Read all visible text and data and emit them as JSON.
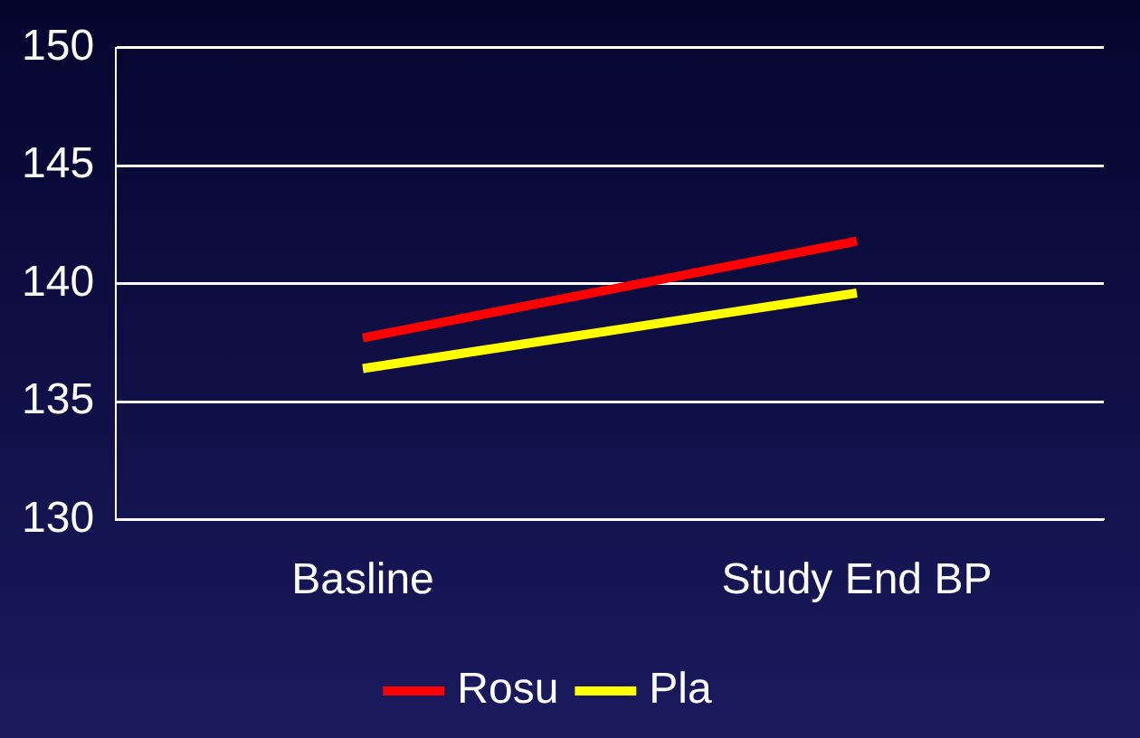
{
  "chart_data": {
    "type": "line",
    "categories": [
      "Basline",
      "Study End BP"
    ],
    "series": [
      {
        "name": "Rosu",
        "color": "#ff0000",
        "values": [
          137.7,
          141.8
        ]
      },
      {
        "name": "Pla",
        "color": "#ffff00",
        "values": [
          136.4,
          139.6
        ]
      }
    ],
    "ylim": [
      130,
      150
    ],
    "yticks": [
      130,
      135,
      140,
      145,
      150
    ],
    "grid": "y",
    "legend": "bottom",
    "marker": "none",
    "line_style": "solid"
  }
}
